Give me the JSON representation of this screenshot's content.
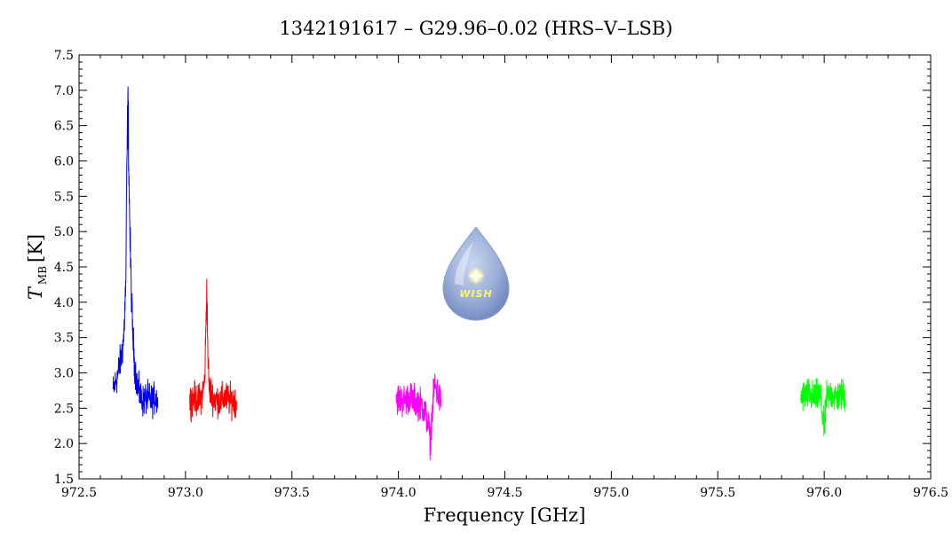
{
  "chart_data": {
    "type": "line",
    "title": "1342191617 – G29.96–0.02 (HRS–V–LSB)",
    "xlabel": "Frequency [GHz]",
    "ylabel_main": "T",
    "ylabel_sub": "MB",
    "ylabel_unit": "[K]",
    "xlim": [
      972.5,
      976.5
    ],
    "ylim": [
      1.5,
      7.5
    ],
    "x_ticks": [
      972.5,
      973.0,
      973.5,
      974.0,
      974.5,
      975.0,
      975.5,
      976.0,
      976.5
    ],
    "x_tick_labels": [
      "972.5",
      "973.0",
      "973.5",
      "974.0",
      "974.5",
      "975.0",
      "975.5",
      "976.0",
      "976.5"
    ],
    "y_ticks": [
      1.5,
      2.0,
      2.5,
      3.0,
      3.5,
      4.0,
      4.5,
      5.0,
      5.5,
      6.0,
      6.5,
      7.0,
      7.5
    ],
    "y_tick_labels": [
      "1.5",
      "2.0",
      "2.5",
      "3.0",
      "3.5",
      "4.0",
      "4.5",
      "5.0",
      "5.5",
      "6.0",
      "6.5",
      "7.0",
      "7.5"
    ],
    "grid": false,
    "logo_text": "WISH",
    "series": [
      {
        "color": "#0000ff",
        "x": [
          972.66,
          972.67,
          972.68,
          972.69,
          972.7,
          972.71,
          972.72,
          972.725,
          972.73,
          972.735,
          972.74,
          972.75,
          972.76,
          972.77,
          972.78,
          972.79,
          972.8,
          972.82,
          972.84,
          972.86,
          972.87
        ],
        "y": [
          2.75,
          2.85,
          2.95,
          3.1,
          3.25,
          3.5,
          4.3,
          6.0,
          6.85,
          5.7,
          4.8,
          3.7,
          3.15,
          2.9,
          2.75,
          2.65,
          2.6,
          2.65,
          2.6,
          2.65,
          2.6
        ]
      },
      {
        "color": "#ff0000",
        "x": [
          973.02,
          973.04,
          973.06,
          973.08,
          973.09,
          973.095,
          973.1,
          973.105,
          973.11,
          973.13,
          973.16,
          973.19,
          973.22,
          973.24
        ],
        "y": [
          2.6,
          2.65,
          2.6,
          2.7,
          2.9,
          3.5,
          4.25,
          3.3,
          2.8,
          2.65,
          2.6,
          2.65,
          2.6,
          2.6
        ]
      },
      {
        "color": "#ff00ff",
        "x": [
          973.99,
          974.02,
          974.05,
          974.08,
          974.11,
          974.13,
          974.145,
          974.15,
          974.155,
          974.17,
          974.19,
          974.2
        ],
        "y": [
          2.65,
          2.6,
          2.65,
          2.6,
          2.55,
          2.4,
          2.2,
          1.95,
          2.3,
          2.85,
          2.65,
          2.6
        ]
      },
      {
        "color": "#00ff00",
        "x": [
          975.89,
          975.92,
          975.95,
          975.98,
          976.0,
          976.01,
          976.03,
          976.06,
          976.09,
          976.1
        ],
        "y": [
          2.65,
          2.7,
          2.65,
          2.7,
          2.2,
          2.65,
          2.7,
          2.65,
          2.7,
          2.65
        ]
      }
    ]
  }
}
